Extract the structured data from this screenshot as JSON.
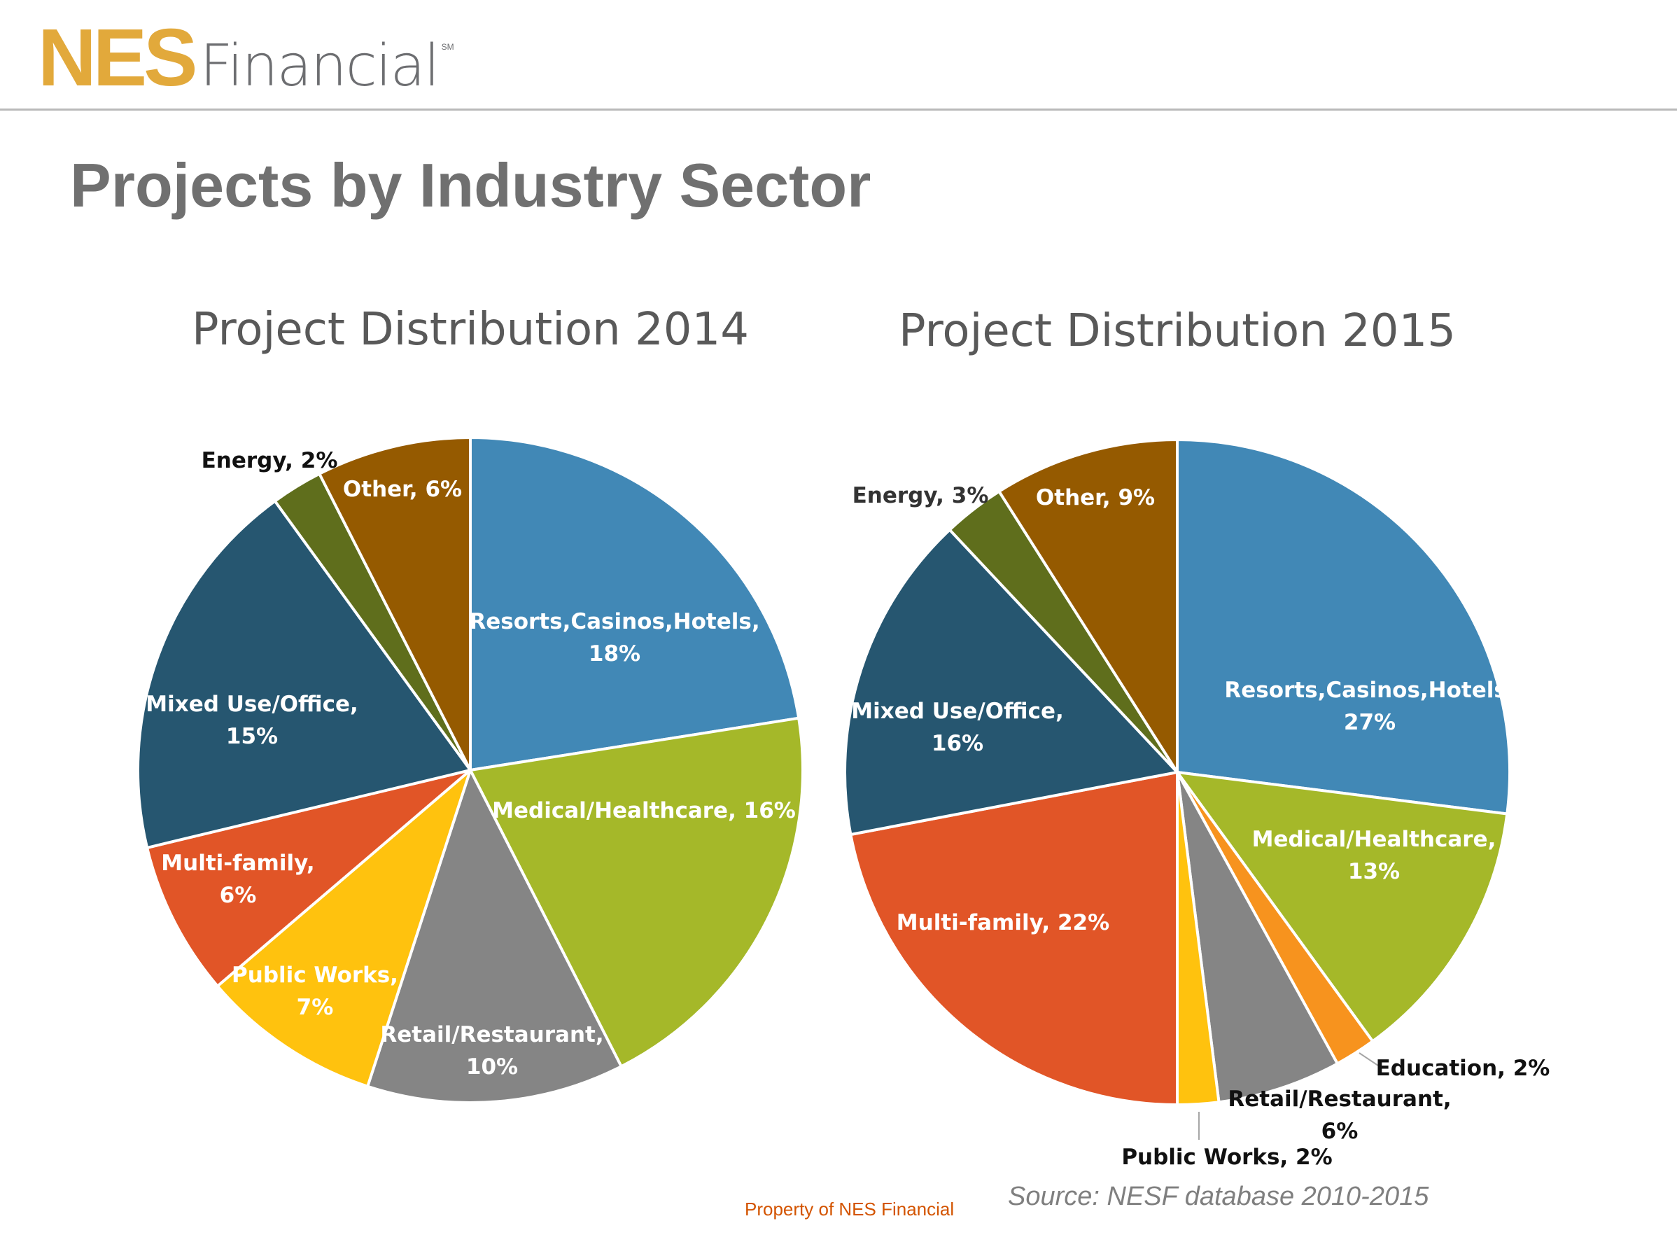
{
  "brand": {
    "logo_mark": "NES",
    "logo_word": "Financial",
    "logo_sm": "SM"
  },
  "page": {
    "title": "Projects by Industry Sector"
  },
  "footer": {
    "property": "Property of NES Financial",
    "source": "Source:  NESF database 2010-2015"
  },
  "chart_data": [
    {
      "type": "pie",
      "title": "Project Distribution 2014",
      "slices": [
        {
          "name": "Resorts,Casinos,Hotels",
          "value": 18,
          "label_lines": [
            "Resorts,Casinos,Hotels,",
            "18%"
          ],
          "color": "#4188B6",
          "text_color": "#ffffff"
        },
        {
          "name": "Medical/Healthcare",
          "value": 16,
          "label_lines": [
            "Medical/Healthcare, 16%"
          ],
          "color": "#A5B829",
          "text_color": "#ffffff"
        },
        {
          "name": "Retail/Restaurant",
          "value": 10,
          "label_lines": [
            "Retail/Restaurant,",
            "10%"
          ],
          "color": "#858585",
          "text_color": "#ffffff"
        },
        {
          "name": "Public Works",
          "value": 7,
          "label_lines": [
            "Public Works,",
            "7%"
          ],
          "color": "#FFC20E",
          "text_color": "#ffffff"
        },
        {
          "name": "Multi-family",
          "value": 6,
          "label_lines": [
            "Multi-family,",
            "6%"
          ],
          "color": "#E15527",
          "text_color": "#ffffff"
        },
        {
          "name": "Mixed Use/Office",
          "value": 15,
          "label_lines": [
            "Mixed Use/Office,",
            "15%"
          ],
          "color": "#265670",
          "text_color": "#ffffff"
        },
        {
          "name": "Energy",
          "value": 2,
          "label_lines": [
            "Energy, 2%"
          ],
          "color": "#5F6E1C",
          "text_color": "#111111"
        },
        {
          "name": "Other",
          "value": 6,
          "label_lines": [
            "Other, 6%"
          ],
          "color": "#955A00",
          "text_color": "#ffffff"
        }
      ]
    },
    {
      "type": "pie",
      "title": "Project Distribution 2015",
      "slices": [
        {
          "name": "Resorts,Casinos,Hotels",
          "value": 27,
          "label_lines": [
            "Resorts,Casinos,Hotels,",
            "27%"
          ],
          "color": "#4188B6",
          "text_color": "#ffffff"
        },
        {
          "name": "Medical/Healthcare",
          "value": 13,
          "label_lines": [
            "Medical/Healthcare,",
            "13%"
          ],
          "color": "#A5B829",
          "text_color": "#ffffff"
        },
        {
          "name": "Education",
          "value": 2,
          "label_lines": [
            "Education, 2%"
          ],
          "color": "#F7931E",
          "text_color": "#111111"
        },
        {
          "name": "Retail/Restaurant",
          "value": 6,
          "label_lines": [
            "Retail/Restaurant,",
            "6%"
          ],
          "color": "#858585",
          "text_color": "#111111"
        },
        {
          "name": "Public Works",
          "value": 2,
          "label_lines": [
            "Public Works, 2%"
          ],
          "color": "#FFC20E",
          "text_color": "#111111"
        },
        {
          "name": "Multi-family",
          "value": 22,
          "label_lines": [
            "Multi-family, 22%"
          ],
          "color": "#E15527",
          "text_color": "#ffffff"
        },
        {
          "name": "Mixed Use/Office",
          "value": 16,
          "label_lines": [
            "Mixed Use/Office,",
            "16%"
          ],
          "color": "#265670",
          "text_color": "#ffffff"
        },
        {
          "name": "Energy",
          "value": 3,
          "label_lines": [
            "Energy, 3%"
          ],
          "color": "#5F6E1C",
          "text_color": "#333333"
        },
        {
          "name": "Other",
          "value": 9,
          "label_lines": [
            "Other, 9%"
          ],
          "color": "#955A00",
          "text_color": "#ffffff"
        }
      ]
    }
  ]
}
